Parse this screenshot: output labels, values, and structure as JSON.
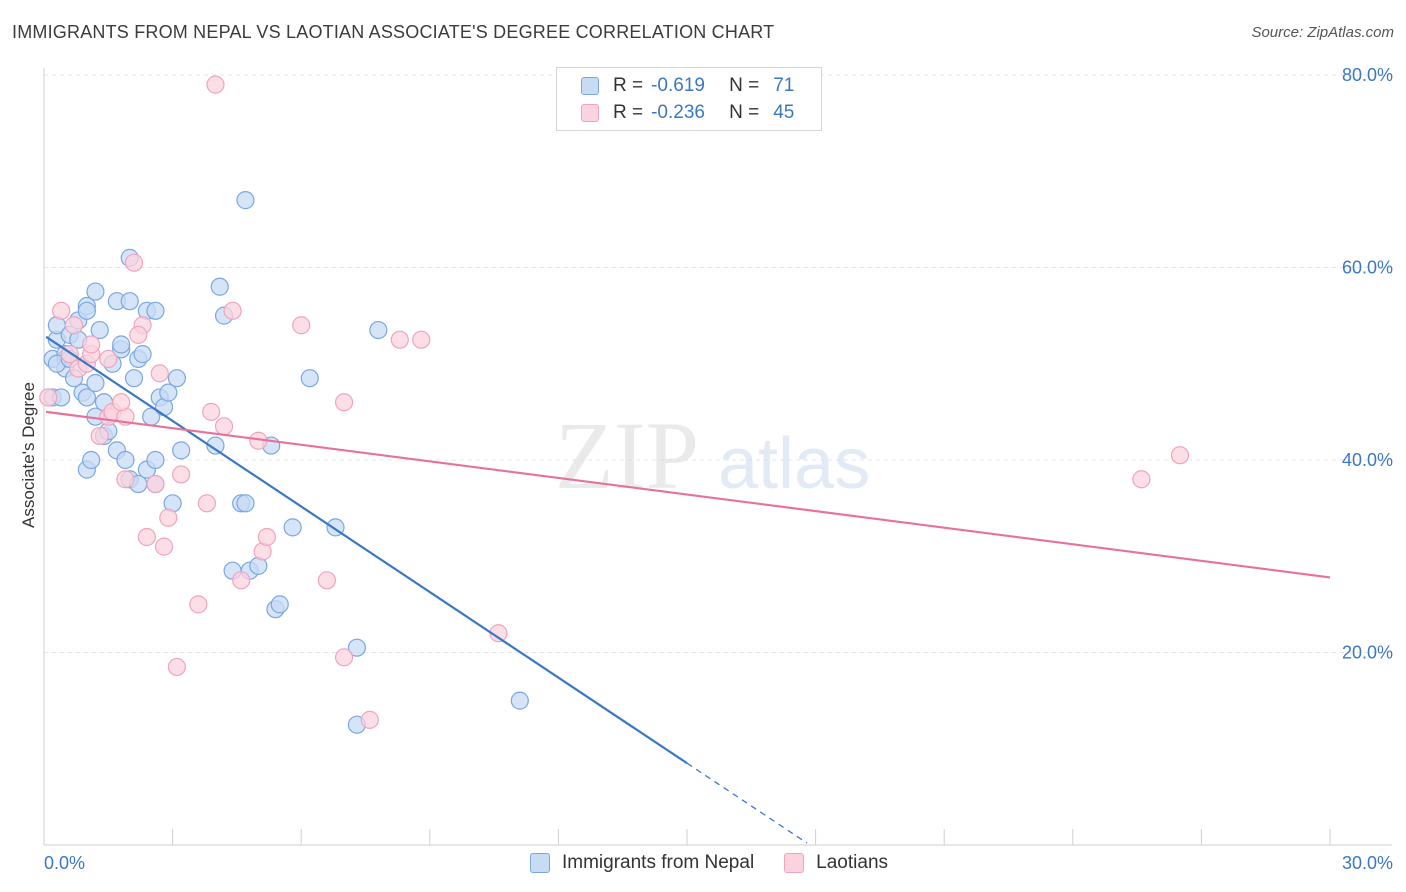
{
  "title": "IMMIGRANTS FROM NEPAL VS LAOTIAN ASSOCIATE'S DEGREE CORRELATION CHART",
  "source": "Source: ZipAtlas.com",
  "watermark": {
    "zip": "ZIP",
    "atlas": "atlas"
  },
  "legend": {
    "rows": [
      {
        "r_label": "R =",
        "r_value": "-0.619",
        "n_label": "N =",
        "n_value": "71",
        "color": "#7aa7e0",
        "fill": "#c7dbf4"
      },
      {
        "r_label": "R =",
        "r_value": "-0.236",
        "n_label": "N =",
        "n_value": "45",
        "color": "#f0a3bd",
        "fill": "#fbd3df"
      }
    ]
  },
  "bottom_legend": {
    "items": [
      {
        "label": "Immigrants from Nepal",
        "color": "#7aa7e0",
        "fill": "#c7dbf4"
      },
      {
        "label": "Laotians",
        "color": "#f0a3bd",
        "fill": "#fbd3df"
      }
    ]
  },
  "chart_data": {
    "type": "scatter",
    "title": "IMMIGRANTS FROM NEPAL VS LAOTIAN ASSOCIATE'S DEGREE CORRELATION CHART",
    "xlabel": "",
    "ylabel": "Associate's Degree",
    "xlim": [
      0,
      30
    ],
    "ylim": [
      0,
      80
    ],
    "x_tick_labels": [
      "0.0%",
      "30.0%"
    ],
    "y_tick_labels": [
      "20.0%",
      "40.0%",
      "60.0%",
      "80.0%"
    ],
    "y_ticks": [
      20,
      40,
      60,
      80
    ],
    "grid": true,
    "legend_position": "top-center",
    "series": [
      {
        "name": "Immigrants from Nepal",
        "color": "#3b78c4",
        "marker_fill": "#c7dbf4",
        "marker_stroke": "#7aa7e0",
        "points": [
          [
            0.2,
            46.5
          ],
          [
            0.2,
            50.5
          ],
          [
            0.3,
            52.5
          ],
          [
            0.3,
            54.0
          ],
          [
            0.5,
            50.5
          ],
          [
            0.5,
            49.5
          ],
          [
            0.5,
            51.0
          ],
          [
            0.6,
            53.0
          ],
          [
            0.7,
            48.5
          ],
          [
            0.8,
            52.5
          ],
          [
            0.9,
            47.0
          ],
          [
            0.8,
            54.5
          ],
          [
            1.0,
            56.0
          ],
          [
            1.0,
            55.5
          ],
          [
            1.0,
            46.5
          ],
          [
            1.2,
            57.5
          ],
          [
            1.2,
            48.0
          ],
          [
            1.3,
            53.5
          ],
          [
            1.2,
            44.5
          ],
          [
            1.4,
            46.0
          ],
          [
            1.4,
            42.5
          ],
          [
            1.6,
            50.0
          ],
          [
            1.7,
            41.0
          ],
          [
            1.7,
            56.5
          ],
          [
            1.8,
            51.5
          ],
          [
            1.8,
            52.0
          ],
          [
            2.0,
            56.5
          ],
          [
            1.9,
            40.0
          ],
          [
            2.0,
            38.0
          ],
          [
            2.1,
            48.5
          ],
          [
            2.0,
            61.0
          ],
          [
            2.2,
            50.5
          ],
          [
            2.2,
            37.5
          ],
          [
            2.3,
            51.0
          ],
          [
            2.4,
            39.0
          ],
          [
            2.5,
            44.5
          ],
          [
            2.4,
            55.5
          ],
          [
            2.6,
            55.5
          ],
          [
            2.6,
            40.0
          ],
          [
            2.6,
            37.5
          ],
          [
            2.7,
            46.5
          ],
          [
            2.8,
            45.5
          ],
          [
            2.9,
            47.0
          ],
          [
            3.0,
            35.5
          ],
          [
            3.1,
            48.5
          ],
          [
            3.2,
            41.0
          ],
          [
            1.0,
            39.0
          ],
          [
            1.1,
            40.0
          ],
          [
            4.0,
            41.5
          ],
          [
            4.1,
            58.0
          ],
          [
            4.2,
            55.0
          ],
          [
            4.4,
            28.5
          ],
          [
            4.6,
            35.5
          ],
          [
            4.7,
            35.5
          ],
          [
            4.7,
            67.0
          ],
          [
            4.8,
            28.5
          ],
          [
            5.0,
            29.0
          ],
          [
            5.3,
            41.5
          ],
          [
            5.4,
            24.5
          ],
          [
            5.5,
            25.0
          ],
          [
            5.8,
            33.0
          ],
          [
            6.2,
            48.5
          ],
          [
            6.8,
            33.0
          ],
          [
            7.3,
            20.5
          ],
          [
            7.3,
            12.5
          ],
          [
            7.8,
            53.5
          ],
          [
            11.1,
            15.0
          ],
          [
            0.3,
            50.0
          ],
          [
            0.4,
            46.5
          ],
          [
            0.6,
            50.5
          ],
          [
            1.5,
            43.0
          ]
        ],
        "trend": {
          "x0": 0.05,
          "y0": 52.8,
          "x1": 15.0,
          "y1": 8.5,
          "dash_x1": 17.8,
          "dash_y1": 0.2
        }
      },
      {
        "name": "Laotians",
        "color": "#e8719a",
        "marker_fill": "#fbd3df",
        "marker_stroke": "#f0a3bd",
        "points": [
          [
            0.1,
            46.5
          ],
          [
            0.4,
            55.5
          ],
          [
            0.6,
            51.0
          ],
          [
            0.7,
            54.0
          ],
          [
            0.8,
            49.5
          ],
          [
            1.0,
            50.0
          ],
          [
            1.1,
            51.0
          ],
          [
            1.1,
            52.0
          ],
          [
            1.3,
            42.5
          ],
          [
            1.5,
            50.5
          ],
          [
            1.5,
            44.5
          ],
          [
            1.6,
            45.0
          ],
          [
            1.9,
            44.5
          ],
          [
            1.9,
            38.0
          ],
          [
            2.1,
            60.5
          ],
          [
            2.3,
            54.0
          ],
          [
            2.2,
            53.0
          ],
          [
            2.4,
            32.0
          ],
          [
            2.6,
            37.5
          ],
          [
            2.7,
            49.0
          ],
          [
            2.8,
            31.0
          ],
          [
            2.9,
            34.0
          ],
          [
            3.1,
            18.5
          ],
          [
            3.2,
            38.5
          ],
          [
            3.6,
            25.0
          ],
          [
            3.8,
            35.5
          ],
          [
            3.9,
            45.0
          ],
          [
            4.0,
            79.0
          ],
          [
            4.2,
            43.5
          ],
          [
            4.4,
            55.5
          ],
          [
            4.6,
            27.5
          ],
          [
            5.0,
            42.0
          ],
          [
            5.1,
            30.5
          ],
          [
            5.2,
            32.0
          ],
          [
            6.0,
            54.0
          ],
          [
            6.6,
            27.5
          ],
          [
            7.0,
            46.0
          ],
          [
            7.0,
            19.5
          ],
          [
            7.6,
            13.0
          ],
          [
            8.3,
            52.5
          ],
          [
            8.8,
            52.5
          ],
          [
            10.6,
            22.0
          ],
          [
            25.6,
            38.0
          ],
          [
            26.5,
            40.5
          ],
          [
            1.8,
            46.0
          ]
        ],
        "trend": {
          "x0": 0.05,
          "y0": 45.0,
          "x1": 30.0,
          "y1": 27.8
        }
      }
    ]
  }
}
